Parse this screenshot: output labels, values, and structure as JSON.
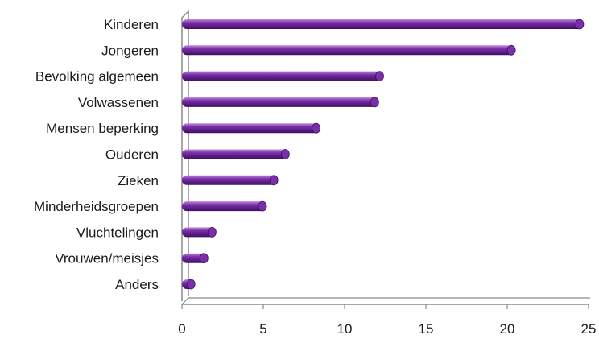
{
  "chart_data": {
    "type": "bar",
    "orientation": "horizontal",
    "categories": [
      "Kinderen",
      "Jongeren",
      "Bevolking algemeen",
      "Volwassenen",
      "Mensen beperking",
      "Ouderen",
      "Zieken",
      "Minderheidsgroepen",
      "Vluchtelingen",
      "Vrouwen/meisjes",
      "Anders"
    ],
    "values": [
      24.7,
      20.5,
      12.4,
      12.1,
      8.5,
      6.6,
      5.9,
      5.2,
      2.1,
      1.6,
      0.8
    ],
    "xlim": [
      0,
      25
    ],
    "xticks": [
      "0",
      "5",
      "10",
      "15",
      "20",
      "25"
    ],
    "title": "",
    "xlabel": "",
    "ylabel": "",
    "grid": false,
    "legend": "none",
    "bar_color": "#7a2fa8",
    "bar_highlight": "#c08be0",
    "bar_shadow": "#3f0f63",
    "axis_color": "#8a8a8a"
  }
}
